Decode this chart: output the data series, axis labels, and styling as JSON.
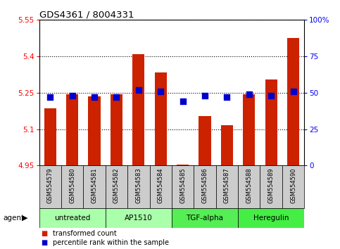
{
  "title": "GDS4361 / 8004331",
  "samples": [
    "GSM554579",
    "GSM554580",
    "GSM554581",
    "GSM554582",
    "GSM554583",
    "GSM554584",
    "GSM554585",
    "GSM554586",
    "GSM554587",
    "GSM554588",
    "GSM554589",
    "GSM554590"
  ],
  "bar_values": [
    5.185,
    5.245,
    5.235,
    5.245,
    5.41,
    5.335,
    4.955,
    5.155,
    5.115,
    5.245,
    5.305,
    5.475
  ],
  "percentile_values": [
    47,
    48,
    47,
    47,
    52,
    51,
    44,
    48,
    47,
    49,
    48,
    51
  ],
  "bar_color": "#cc2200",
  "percentile_color": "#0000cc",
  "ylim_left": [
    4.95,
    5.55
  ],
  "ylim_right": [
    0,
    100
  ],
  "yticks_left": [
    4.95,
    5.1,
    5.25,
    5.4,
    5.55
  ],
  "yticks_right": [
    0,
    25,
    50,
    75,
    100
  ],
  "ytick_labels_left": [
    "4.95",
    "5.1",
    "5.25",
    "5.4",
    "5.55"
  ],
  "ytick_labels_right": [
    "0",
    "25",
    "50",
    "75",
    "100%"
  ],
  "groups": [
    {
      "label": "untreated",
      "indices": [
        0,
        1,
        2
      ],
      "color": "#aaffaa"
    },
    {
      "label": "AP1510",
      "indices": [
        3,
        4,
        5
      ],
      "color": "#aaffaa"
    },
    {
      "label": "TGF-alpha",
      "indices": [
        6,
        7,
        8
      ],
      "color": "#55ee55"
    },
    {
      "label": "Heregulin",
      "indices": [
        9,
        10,
        11
      ],
      "color": "#44ee44"
    }
  ],
  "sample_bg_color": "#cccccc",
  "agent_label": "agent",
  "legend_items": [
    {
      "color": "#cc2200",
      "label": "transformed count"
    },
    {
      "color": "#0000cc",
      "label": "percentile rank within the sample"
    }
  ],
  "grid_color": "#000000",
  "bar_width": 0.55,
  "percentile_marker_size": 36
}
